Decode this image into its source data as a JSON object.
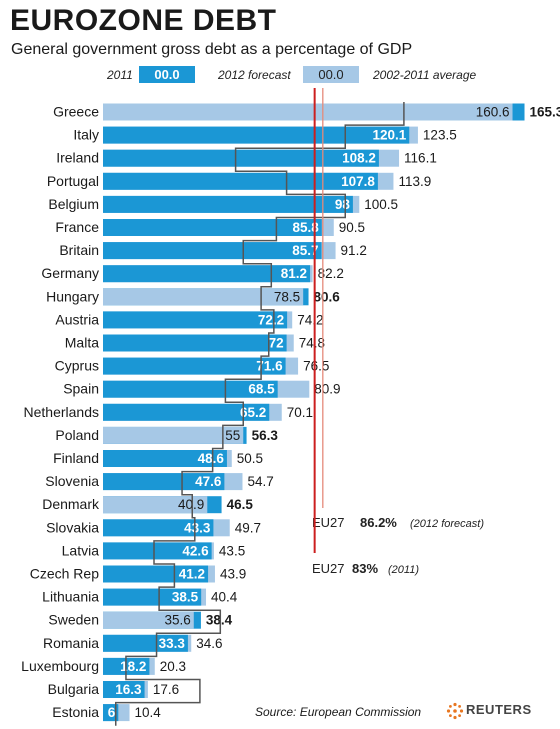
{
  "title": "EUROZONE DEBT",
  "subtitle": "General government gross debt as a percentage of GDP",
  "legend": {
    "y2011": "2011",
    "forecast": "2012 forecast",
    "sample": "00.0",
    "average": "2002-2011 average"
  },
  "colors": {
    "bar2011": "#1b97d5",
    "bar2012": "#a6c8e6",
    "avgLine": "#555555",
    "eu2011": "#cc1f1f",
    "eu2012": "#e58a7a"
  },
  "eu": {
    "forecast_label": "EU27",
    "forecast_value": "86.2%",
    "forecast_note": "(2012 forecast)",
    "y2011_label": "EU27",
    "y2011_value": "83%",
    "y2011_note": "(2011)"
  },
  "source": "Source: European Commission",
  "brand": "REUTERS",
  "chart_data": {
    "type": "bar",
    "orientation": "horizontal",
    "title": "EUROZONE DEBT",
    "subtitle": "General government gross debt as a percentage of GDP",
    "categories": [
      "Greece",
      "Italy",
      "Ireland",
      "Portugal",
      "Belgium",
      "France",
      "Britain",
      "Germany",
      "Hungary",
      "Austria",
      "Malta",
      "Cyprus",
      "Spain",
      "Netherlands",
      "Poland",
      "Finland",
      "Slovenia",
      "Denmark",
      "Slovakia",
      "Latvia",
      "Czech Rep",
      "Lithuania",
      "Sweden",
      "Romania",
      "Luxembourg",
      "Bulgaria",
      "Estonia"
    ],
    "series": [
      {
        "name": "2011",
        "values": [
          165.3,
          120.1,
          108.2,
          107.8,
          98,
          85.8,
          85.7,
          81.2,
          80.6,
          72.2,
          72,
          71.6,
          68.5,
          65.2,
          56.3,
          48.6,
          47.6,
          46.5,
          43.3,
          42.6,
          41.2,
          38.5,
          38.4,
          33.3,
          18.2,
          16.3,
          6
        ]
      },
      {
        "name": "2012 forecast",
        "values": [
          160.6,
          123.5,
          116.1,
          113.9,
          100.5,
          90.5,
          91.2,
          82.2,
          78.5,
          74.2,
          74.8,
          76.5,
          80.9,
          70.1,
          55,
          50.5,
          54.7,
          40.9,
          49.7,
          43.5,
          43.9,
          40.4,
          35.6,
          34.6,
          20.3,
          17.6,
          10.4
        ]
      },
      {
        "name": "2002-2011 average",
        "values": [
          118,
          95,
          52,
          72,
          95,
          68,
          55,
          66,
          62,
          67,
          65,
          62,
          48,
          55,
          47,
          43,
          31,
          35,
          36,
          20,
          28,
          22,
          46,
          21,
          9,
          38,
          5
        ]
      }
    ],
    "labels_2011": [
      "165.3",
      "120.1",
      "108.2",
      "107.8",
      "98",
      "85.8",
      "85.7",
      "81.2",
      "80.6",
      "72.2",
      "72",
      "71.6",
      "68.5",
      "65.2",
      "56.3",
      "48.6",
      "47.6",
      "46.5",
      "43.3",
      "42.6",
      "41.2",
      "38.5",
      "38.4",
      "33.3",
      "18.2",
      "16.3",
      "6"
    ],
    "labels_2012": [
      "160.6",
      "123.5",
      "116.1",
      "113.9",
      "100.5",
      "90.5",
      "91.2",
      "82.2",
      "78.5",
      "74.2",
      "74.8",
      "76.5",
      "80.9",
      "70.1",
      "55",
      "50.5",
      "54.7",
      "40.9",
      "49.7",
      "43.5",
      "43.9",
      "40.4",
      "35.6",
      "34.6",
      "20.3",
      "17.6",
      "10.4"
    ],
    "reference_lines": [
      {
        "name": "EU27 2012 forecast",
        "value": 86.2
      },
      {
        "name": "EU27 2011",
        "value": 83
      }
    ],
    "xlim": [
      0,
      170
    ],
    "grid": false,
    "legend": "top"
  }
}
